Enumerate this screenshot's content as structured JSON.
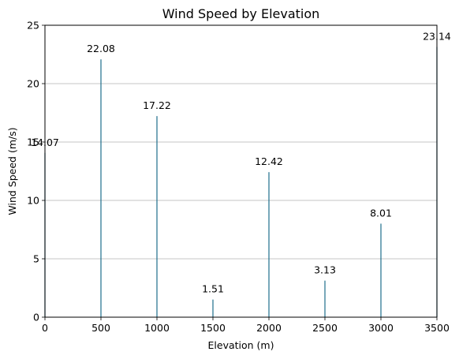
{
  "chart_data": {
    "type": "bar",
    "title": "Wind Speed by Elevation",
    "xlabel": "Elevation (m)",
    "ylabel": "Wind Speed (m/s)",
    "xlim": [
      0,
      3500
    ],
    "ylim": [
      0,
      25
    ],
    "xticks": [
      0,
      500,
      1000,
      1500,
      2000,
      2500,
      3000,
      3500
    ],
    "yticks": [
      0,
      5,
      10,
      15,
      20,
      25
    ],
    "grid": "y",
    "bar_color": "#1f6e8c",
    "points": [
      {
        "x": 0,
        "y": 14.07,
        "label": "14.07"
      },
      {
        "x": 500,
        "y": 22.08,
        "label": "22.08"
      },
      {
        "x": 1000,
        "y": 17.22,
        "label": "17.22"
      },
      {
        "x": 1500,
        "y": 1.51,
        "label": "1.51"
      },
      {
        "x": 2000,
        "y": 12.42,
        "label": "12.42"
      },
      {
        "x": 2500,
        "y": 3.13,
        "label": "3.13"
      },
      {
        "x": 3000,
        "y": 8.01,
        "label": "8.01"
      },
      {
        "x": 3500,
        "y": 23.14,
        "label": "23.14"
      }
    ]
  }
}
